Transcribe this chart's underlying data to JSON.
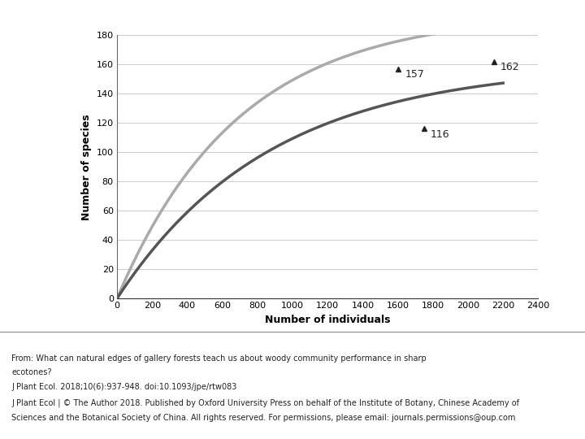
{
  "xlabel": "Number of individuals",
  "ylabel": "Number of species",
  "xlim": [
    0,
    2400
  ],
  "ylim": [
    0,
    180
  ],
  "xticks": [
    0,
    200,
    400,
    600,
    800,
    1000,
    1200,
    1400,
    1600,
    1800,
    2000,
    2200,
    2400
  ],
  "yticks": [
    0,
    20,
    40,
    60,
    80,
    100,
    120,
    140,
    160,
    180
  ],
  "light_curve_color": "#aaaaaa",
  "dark_curve_color": "#555555",
  "light_marker_x": 1600,
  "light_marker_y": 157,
  "dark_marker_x": 1750,
  "dark_marker_y": 116,
  "light_endpoint_x": 2150,
  "light_endpoint_y": 162,
  "S_max_light": 195,
  "k_light": 0.00145,
  "S_max_dark": 160,
  "k_dark": 0.00115,
  "x_light_end": 2250,
  "x_dark_end": 2200,
  "annotation_light_1": "157",
  "annotation_light_2": "162",
  "annotation_dark": "116",
  "caption_line1": "From: What can natural edges of gallery forests teach us about woody community performance in sharp",
  "caption_line2": "ecotones?",
  "caption_line3": "J Plant Ecol. 2018;10(6):937-948. doi:10.1093/jpe/rtw083",
  "caption_line4": "J Plant Ecol | © The Author 2018. Published by Oxford University Press on behalf of the Institute of Botany, Chinese Academy of",
  "caption_line5": "Sciences and the Botanical Society of China. All rights reserved. For permissions, please email: journals.permissions@oup.com",
  "background_color": "#ffffff",
  "light_lw": 2.5,
  "dark_lw": 2.5,
  "marker_size": 5,
  "marker_color": "#222222",
  "axis_fontsize": 9,
  "label_fontsize": 9,
  "tick_labelsize": 8,
  "caption_fontsize": 7,
  "annot_fontsize": 9
}
